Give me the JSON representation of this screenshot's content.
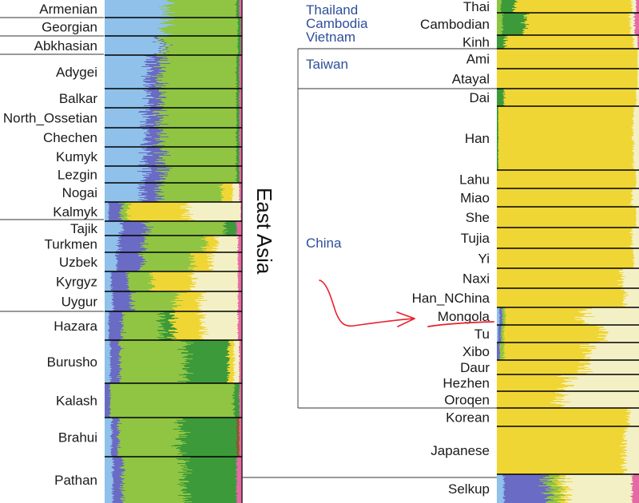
{
  "chart_data": {
    "type": "admixture_bar",
    "title": "",
    "section_label": "East Asia",
    "colors": {
      "lightblue": "#8fc1ea",
      "purple": "#6a6bc4",
      "green": "#8fc543",
      "darkgreen": "#3d9a3a",
      "yellow": "#f0d635",
      "cream": "#f3f0c6",
      "pink": "#e46aa5",
      "brown": "#8a5a2b",
      "red": "#e33b3b"
    },
    "left_panel": [
      {
        "name": "Armenian",
        "comp": {
          "lightblue": 0.46,
          "green": 0.5,
          "darkgreen": 0.02,
          "pink": 0.02
        }
      },
      {
        "name": "Georgian",
        "comp": {
          "lightblue": 0.44,
          "green": 0.53,
          "darkgreen": 0.02,
          "pink": 0.01
        }
      },
      {
        "name": "Abkhasian",
        "comp": {
          "lightblue": 0.42,
          "purple": 0.02,
          "green": 0.53,
          "darkgreen": 0.02,
          "pink": 0.01
        }
      },
      {
        "name": "Adygei",
        "comp": {
          "lightblue": 0.32,
          "purple": 0.09,
          "green": 0.55,
          "darkgreen": 0.02,
          "pink": 0.02
        }
      },
      {
        "name": "Balkar",
        "comp": {
          "lightblue": 0.31,
          "purple": 0.09,
          "green": 0.56,
          "darkgreen": 0.02,
          "pink": 0.02
        }
      },
      {
        "name": "North_Ossetian",
        "comp": {
          "lightblue": 0.3,
          "purple": 0.1,
          "green": 0.56,
          "darkgreen": 0.02,
          "pink": 0.02
        }
      },
      {
        "name": "Chechen",
        "comp": {
          "lightblue": 0.3,
          "purple": 0.1,
          "green": 0.56,
          "darkgreen": 0.02,
          "pink": 0.02
        }
      },
      {
        "name": "Kumyk",
        "comp": {
          "lightblue": 0.3,
          "purple": 0.12,
          "green": 0.54,
          "darkgreen": 0.02,
          "pink": 0.02
        }
      },
      {
        "name": "Lezgin",
        "comp": {
          "lightblue": 0.29,
          "purple": 0.13,
          "green": 0.54,
          "darkgreen": 0.02,
          "pink": 0.02
        }
      },
      {
        "name": "Nogai",
        "comp": {
          "lightblue": 0.27,
          "purple": 0.13,
          "green": 0.45,
          "yellow": 0.08,
          "cream": 0.05,
          "pink": 0.02
        }
      },
      {
        "name": "Kalmyk",
        "comp": {
          "lightblue": 0.03,
          "purple": 0.09,
          "green": 0.05,
          "yellow": 0.43,
          "cream": 0.39,
          "pink": 0.01
        }
      },
      {
        "name": "Tajik",
        "comp": {
          "lightblue": 0.12,
          "purple": 0.18,
          "green": 0.58,
          "darkgreen": 0.08,
          "pink": 0.04
        }
      },
      {
        "name": "Turkmen",
        "comp": {
          "lightblue": 0.1,
          "purple": 0.18,
          "green": 0.45,
          "yellow": 0.08,
          "cream": 0.16,
          "pink": 0.03
        }
      },
      {
        "name": "Uzbek",
        "comp": {
          "lightblue": 0.09,
          "purple": 0.18,
          "green": 0.36,
          "yellow": 0.14,
          "cream": 0.2,
          "pink": 0.03
        }
      },
      {
        "name": "Kyrgyz",
        "comp": {
          "lightblue": 0.05,
          "purple": 0.12,
          "green": 0.18,
          "yellow": 0.3,
          "cream": 0.32,
          "pink": 0.03
        }
      },
      {
        "name": "Uygur",
        "comp": {
          "lightblue": 0.06,
          "purple": 0.14,
          "green": 0.32,
          "yellow": 0.17,
          "cream": 0.28,
          "pink": 0.03
        }
      },
      {
        "name": "Hazara",
        "comp": {
          "lightblue": 0.03,
          "purple": 0.1,
          "green": 0.28,
          "darkgreen": 0.08,
          "yellow": 0.22,
          "cream": 0.26,
          "pink": 0.03
        }
      },
      {
        "name": "Burusho",
        "comp": {
          "lightblue": 0.04,
          "purple": 0.07,
          "green": 0.48,
          "darkgreen": 0.31,
          "yellow": 0.04,
          "cream": 0.04,
          "pink": 0.02
        }
      },
      {
        "name": "Kalash",
        "comp": {
          "purple": 0.04,
          "green": 0.9,
          "darkgreen": 0.04,
          "pink": 0.02
        }
      },
      {
        "name": "Brahui",
        "comp": {
          "lightblue": 0.05,
          "purple": 0.05,
          "green": 0.45,
          "darkgreen": 0.41,
          "brown": 0.02,
          "pink": 0.02
        }
      },
      {
        "name": "Pathan",
        "comp": {
          "lightblue": 0.06,
          "purple": 0.07,
          "green": 0.45,
          "darkgreen": 0.38,
          "pink": 0.04
        }
      }
    ],
    "right_panel": [
      {
        "name": "Thai",
        "comp": {
          "darkgreen": 0.1,
          "green": 0.03,
          "yellow": 0.82,
          "cream": 0.03,
          "pink": 0.02
        }
      },
      {
        "name": "Cambodian",
        "comp": {
          "darkgreen": 0.16,
          "green": 0.04,
          "yellow": 0.74,
          "cream": 0.03,
          "pink": 0.03
        }
      },
      {
        "name": "Kinh",
        "comp": {
          "darkgreen": 0.06,
          "yellow": 0.9,
          "cream": 0.03,
          "pink": 0.01
        }
      },
      {
        "name": "Ami",
        "comp": {
          "yellow": 0.99,
          "cream": 0.01
        }
      },
      {
        "name": "Atayal",
        "comp": {
          "yellow": 0.99,
          "cream": 0.01
        }
      },
      {
        "name": "Dai",
        "comp": {
          "darkgreen": 0.05,
          "yellow": 0.93,
          "cream": 0.02
        }
      },
      {
        "name": "Han",
        "comp": {
          "darkgreen": 0.01,
          "yellow": 0.95,
          "cream": 0.04
        }
      },
      {
        "name": "Lahu",
        "comp": {
          "yellow": 0.98,
          "cream": 0.02
        }
      },
      {
        "name": "Miao",
        "comp": {
          "yellow": 0.95,
          "cream": 0.05
        }
      },
      {
        "name": "She",
        "comp": {
          "yellow": 0.98,
          "cream": 0.02
        }
      },
      {
        "name": "Tujia",
        "comp": {
          "yellow": 0.95,
          "cream": 0.05
        }
      },
      {
        "name": "Yi",
        "comp": {
          "yellow": 0.96,
          "cream": 0.04
        }
      },
      {
        "name": "Naxi",
        "comp": {
          "yellow": 0.88,
          "cream": 0.12
        }
      },
      {
        "name": "Han_NChina",
        "comp": {
          "yellow": 0.9,
          "cream": 0.1
        }
      },
      {
        "name": "Mongola",
        "comp": {
          "lightblue": 0.02,
          "purple": 0.02,
          "green": 0.02,
          "yellow": 0.55,
          "cream": 0.39
        }
      },
      {
        "name": "Tu",
        "comp": {
          "lightblue": 0.01,
          "purple": 0.02,
          "green": 0.02,
          "yellow": 0.7,
          "cream": 0.25
        }
      },
      {
        "name": "Xibo",
        "comp": {
          "purple": 0.02,
          "green": 0.03,
          "yellow": 0.6,
          "cream": 0.35
        }
      },
      {
        "name": "Daur",
        "comp": {
          "yellow": 0.62,
          "cream": 0.38
        }
      },
      {
        "name": "Hezhen",
        "comp": {
          "yellow": 0.5,
          "cream": 0.5
        }
      },
      {
        "name": "Oroqen",
        "comp": {
          "yellow": 0.45,
          "cream": 0.55
        }
      },
      {
        "name": "Korean",
        "comp": {
          "yellow": 0.93,
          "cream": 0.07
        }
      },
      {
        "name": "Japanese",
        "comp": {
          "yellow": 0.9,
          "cream": 0.1
        }
      },
      {
        "name": "Selkup",
        "comp": {
          "lightblue": 0.05,
          "purple": 0.3,
          "green": 0.08,
          "yellow": 0.05,
          "cream": 0.47,
          "pink": 0.05
        }
      }
    ],
    "region_labels": [
      {
        "lines": [
          "Thailand",
          "Cambodia",
          "Vietnam"
        ]
      },
      {
        "lines": [
          "Taiwan"
        ]
      },
      {
        "lines": [
          "China"
        ]
      }
    ],
    "annotation": "red hand-drawn arrow pointing to Mongola"
  }
}
